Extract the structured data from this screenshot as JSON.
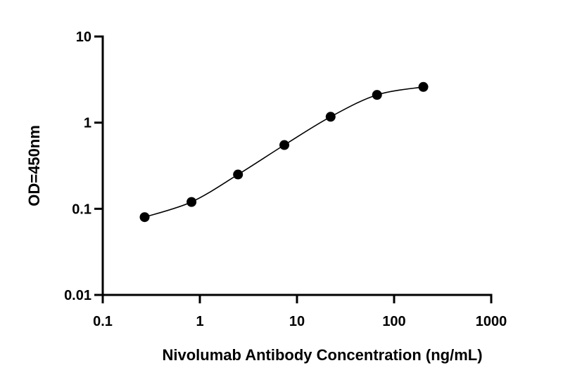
{
  "chart_data": {
    "type": "scatter",
    "xlabel": "Nivolumab Antibody Concentration (ng/mL)",
    "ylabel": "OD=450nm",
    "xscale": "log",
    "yscale": "log",
    "xlim": [
      0.1,
      1000
    ],
    "ylim": [
      0.01,
      10
    ],
    "xticks": [
      0.1,
      1,
      10,
      100,
      1000
    ],
    "xtick_labels": [
      "0.1",
      "1",
      "10",
      "100",
      "1000"
    ],
    "yticks": [
      0.01,
      0.1,
      1,
      10
    ],
    "ytick_labels": [
      "0.01",
      "0.1",
      "1",
      "10"
    ],
    "grid": false,
    "fit_curve": true,
    "series": [
      {
        "x": [
          0.27,
          0.82,
          2.47,
          7.41,
          22.2,
          66.7,
          200
        ],
        "y": [
          0.08,
          0.12,
          0.25,
          0.55,
          1.17,
          2.1,
          2.6
        ]
      }
    ]
  },
  "colors": {
    "marker": "#000000",
    "axis": "#000000",
    "background": "#ffffff"
  }
}
